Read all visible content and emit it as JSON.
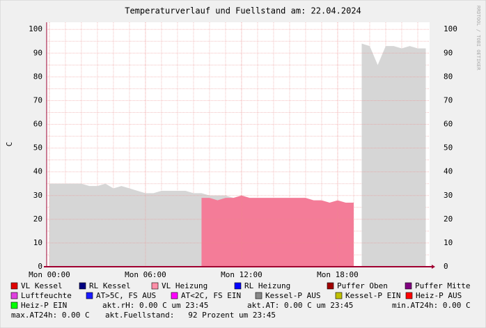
{
  "chart_data": {
    "type": "area",
    "title": "Temperaturverlauf und Fuellstand am: 22.04.2024",
    "y_label": "C",
    "side_text": "RRDTOOL / TOBI OETIKER",
    "xlim": [
      -0.17,
      23.74
    ],
    "xticks": [
      {
        "value": 0,
        "label": "Mon 00:00"
      },
      {
        "value": 6,
        "label": "Mon 06:00"
      },
      {
        "value": 12,
        "label": "Mon 12:00"
      },
      {
        "value": 18,
        "label": "Mon 18:00"
      }
    ],
    "ylim": [
      0,
      103
    ],
    "yticks": [
      0,
      10,
      20,
      30,
      40,
      50,
      60,
      70,
      80,
      90,
      100
    ],
    "grid": true,
    "x": [
      0,
      0.5,
      1,
      1.5,
      2,
      2.5,
      3,
      3.5,
      4,
      4.5,
      5,
      5.5,
      6,
      6.5,
      7,
      7.5,
      8,
      8.5,
      9,
      9.5,
      10,
      10.5,
      11,
      11.5,
      12,
      12.5,
      13,
      13.5,
      14,
      14.5,
      15,
      15.5,
      16,
      16.5,
      17,
      17.5,
      18,
      18.5,
      19,
      19.5,
      20,
      20.5,
      21,
      21.5,
      22,
      22.5,
      23,
      23.5
    ],
    "series": [
      {
        "color": "#d6d6d6",
        "values": [
          35,
          35,
          35,
          35,
          35,
          34,
          34,
          35,
          33,
          34,
          33,
          32,
          31,
          31,
          32,
          32,
          32,
          32,
          31,
          31,
          30,
          30,
          30,
          29,
          30,
          29,
          null,
          null,
          null,
          null,
          null,
          null,
          null,
          null,
          null,
          null,
          null,
          null,
          null,
          94,
          93,
          85,
          93,
          93,
          92,
          93,
          92,
          92
        ]
      },
      {
        "color": "#f47c98",
        "values": [
          null,
          null,
          null,
          null,
          null,
          null,
          null,
          null,
          null,
          null,
          null,
          null,
          null,
          null,
          null,
          null,
          null,
          null,
          null,
          29,
          29,
          28,
          29,
          29,
          30,
          29,
          29,
          29,
          29,
          29,
          29,
          29,
          29,
          28,
          28,
          27,
          28,
          27,
          27,
          null,
          null,
          null,
          null,
          null,
          null,
          null,
          null,
          null
        ]
      }
    ],
    "legend": [
      {
        "name": "VL Kessel",
        "color": "#e00000"
      },
      {
        "name": "RL Kessel",
        "color": "#000080"
      },
      {
        "name": "VL Heizung",
        "color": "#ff8fa8"
      },
      {
        "name": "RL Heizung",
        "color": "#0000ff"
      },
      {
        "name": "Puffer Oben",
        "color": "#a00000"
      },
      {
        "name": "Puffer Mitte",
        "color": "#800080"
      },
      {
        "name": "Luftfeuchte",
        "color": "#e040e0"
      },
      {
        "name": "AT>5C, FS AUS",
        "color": "#1a1aff"
      },
      {
        "name": "AT<2C, FS EIN",
        "color": "#ff00ff"
      },
      {
        "name": "Kessel-P AUS",
        "color": "#888888"
      },
      {
        "name": "Kessel-P EIN",
        "color": "#c0c000"
      },
      {
        "name": "Heiz-P AUS",
        "color": "#ff0000"
      },
      {
        "name": "Heiz-P EIN",
        "color": "#00ff00"
      }
    ],
    "stats": [
      "akt.rH: 0.00 C um 23:45",
      "akt.AT: 0.00 C um 23:45",
      "min.AT24h: 0.00 C",
      "max.AT24h: 0.00 C",
      "akt.Fuellstand:   92 Prozent um 23:45"
    ]
  }
}
